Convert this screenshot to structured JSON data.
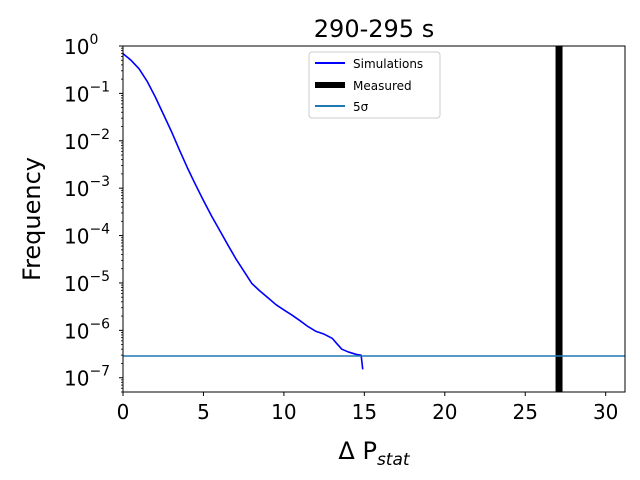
{
  "chart_data": {
    "type": "line",
    "title": "290-295 s",
    "xlabel": "Δ P",
    "xlabel_sub": "stat",
    "ylabel": "Frequency",
    "xlim": [
      0,
      31.2
    ],
    "ylim": [
      5e-08,
      1.0
    ],
    "yscale": "log",
    "x_ticks": [
      0,
      5,
      10,
      15,
      20,
      25,
      30
    ],
    "y_ticks": [
      {
        "exp": 0,
        "value": 1
      },
      {
        "exp": -1,
        "value": 0.1
      },
      {
        "exp": -2,
        "value": 0.01
      },
      {
        "exp": -3,
        "value": 0.001
      },
      {
        "exp": -4,
        "value": 0.0001
      },
      {
        "exp": -5,
        "value": 1e-05
      },
      {
        "exp": -6,
        "value": 1e-06
      },
      {
        "exp": -7,
        "value": 1e-07
      }
    ],
    "y_tick_base": "10",
    "legend": {
      "position": "top-center",
      "entries": [
        "Simulations",
        "Measured",
        "5σ"
      ]
    },
    "series": [
      {
        "name": "Simulations",
        "color": "#0000ff",
        "x": [
          0,
          0.5,
          1,
          1.5,
          2,
          2.5,
          3,
          3.5,
          4,
          4.5,
          5,
          5.5,
          6,
          6.5,
          7,
          7.5,
          8,
          8.5,
          9,
          9.5,
          10,
          10.5,
          11,
          11.5,
          12,
          12.5,
          13,
          13.3,
          13.6,
          14,
          14.5,
          14.8,
          14.9
        ],
        "y": [
          0.69,
          0.5,
          0.33,
          0.18,
          0.085,
          0.037,
          0.016,
          0.0065,
          0.0027,
          0.0012,
          0.00055,
          0.00026,
          0.00013,
          6.5e-05,
          3.3e-05,
          1.8e-05,
          9.8e-06,
          6.8e-06,
          4.9e-06,
          3.5e-06,
          2.7e-06,
          2.1e-06,
          1.6e-06,
          1.2e-06,
          9.5e-07,
          8.3e-07,
          6.8e-07,
          5.2e-07,
          4e-07,
          3.5e-07,
          3.1e-07,
          3e-07,
          1.5e-07
        ]
      },
      {
        "name": "Measured",
        "color": "#000000",
        "type": "vline",
        "x": 27.1
      },
      {
        "name": "5σ",
        "color": "#1f77b4",
        "type": "hline",
        "y": 2.87e-07
      }
    ]
  }
}
